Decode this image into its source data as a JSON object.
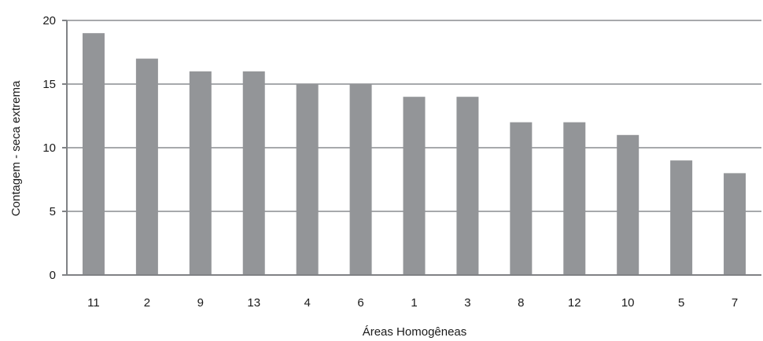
{
  "chart_data": {
    "type": "bar",
    "categories": [
      "11",
      "2",
      "9",
      "13",
      "4",
      "6",
      "1",
      "3",
      "8",
      "12",
      "10",
      "5",
      "7"
    ],
    "values": [
      19,
      17,
      16,
      16,
      15,
      15,
      14,
      14,
      12,
      12,
      11,
      9,
      8
    ],
    "xlabel": "Áreas Homogêneas",
    "ylabel": "Contagem - seca extrema",
    "ylim": [
      0,
      20
    ],
    "yticks": [
      "0",
      "5",
      "10",
      "15",
      "20"
    ],
    "grid": true,
    "legend": "none",
    "bar_color": "#939598",
    "grid_color": "#a7a9ac",
    "axis_color": "#808285"
  }
}
